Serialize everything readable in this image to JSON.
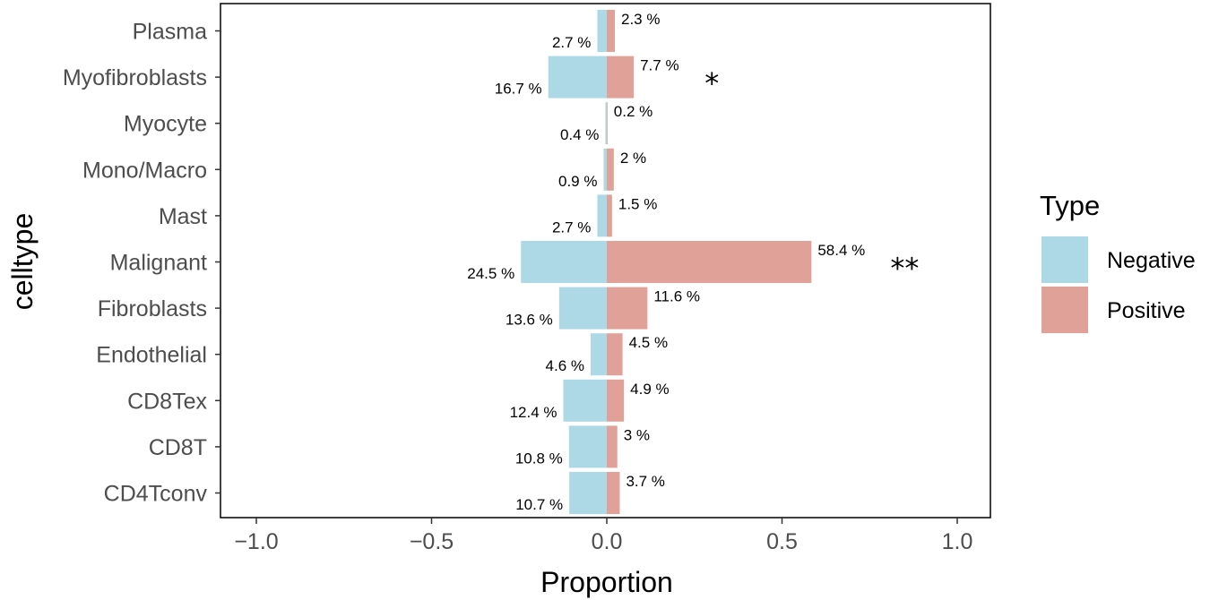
{
  "chart_data": {
    "type": "bar",
    "orientation": "horizontal",
    "xlabel": "Proportion",
    "ylabel": "celltype",
    "xlim": [
      -1.0,
      1.0
    ],
    "x_ticks": [
      -1.0,
      -0.5,
      0.0,
      0.5,
      1.0
    ],
    "x_tick_labels": [
      "−1.0",
      "−0.5",
      "0.0",
      "0.5",
      "1.0"
    ],
    "grid": false,
    "categories": [
      "Plasma",
      "Myofibroblasts",
      "Myocyte",
      "Mono/Macro",
      "Mast",
      "Malignant",
      "Fibroblasts",
      "Endothelial",
      "CD8Tex",
      "CD8T",
      "CD4Tconv"
    ],
    "series": [
      {
        "name": "Negative",
        "color": "#ADD8E6",
        "values": [
          -0.027,
          -0.167,
          -0.004,
          -0.009,
          -0.027,
          -0.245,
          -0.136,
          -0.046,
          -0.124,
          -0.108,
          -0.107
        ],
        "labels": [
          "2.7 %",
          "16.7 %",
          "0.4 %",
          "0.9 %",
          "2.7 %",
          "24.5 %",
          "13.6 %",
          "4.6 %",
          "12.4 %",
          "10.8 %",
          "10.7 %"
        ]
      },
      {
        "name": "Positive",
        "color": "#E0A298",
        "values": [
          0.023,
          0.077,
          0.002,
          0.02,
          0.015,
          0.584,
          0.116,
          0.045,
          0.049,
          0.03,
          0.037
        ],
        "labels": [
          "2.3 %",
          "7.7 %",
          "0.2 %",
          "2 %",
          "1.5 %",
          "58.4 %",
          "11.6 %",
          "4.5 %",
          "4.9 %",
          "3 %",
          "3.7 %"
        ]
      }
    ],
    "annotations": [
      {
        "category": "Myofibroblasts",
        "text": "*",
        "x": 0.3
      },
      {
        "category": "Malignant",
        "text": "**",
        "x": 0.85
      }
    ],
    "legend": {
      "title": "Type",
      "position": "right"
    }
  }
}
